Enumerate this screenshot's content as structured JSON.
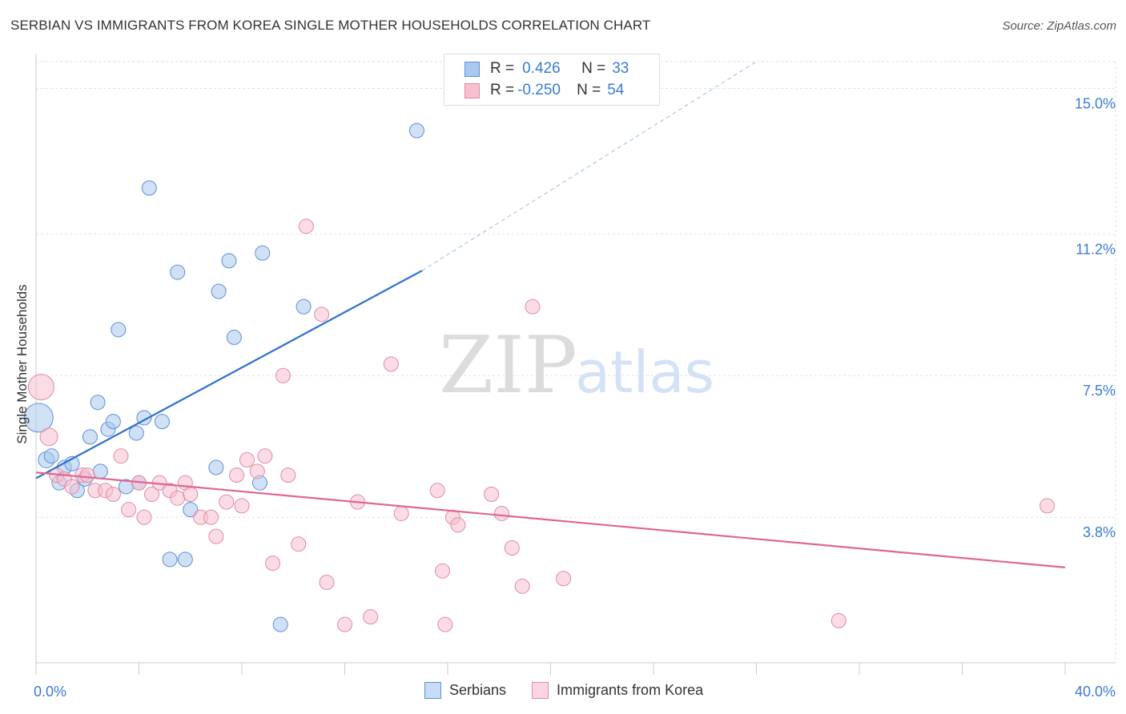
{
  "title": "SERBIAN VS IMMIGRANTS FROM KOREA SINGLE MOTHER HOUSEHOLDS CORRELATION CHART",
  "source": "Source: ZipAtlas.com",
  "watermark": {
    "zip": "ZIP",
    "atlas": "atlas"
  },
  "legend_top": [
    {
      "r_label": "R =",
      "r_value": "0.426",
      "n_label": "N =",
      "n_value": "33",
      "color": "#a9c8ef",
      "border": "#5b8fd6"
    },
    {
      "r_label": "R =",
      "r_value": "-0.250",
      "n_label": "N =",
      "n_value": "54",
      "color": "#f7c0d0",
      "border": "#e08aa6"
    }
  ],
  "legend_bottom": [
    "Serbians",
    "Immigrants from Korea"
  ],
  "chart_data": {
    "type": "scatter",
    "title": "SERBIAN VS IMMIGRANTS FROM KOREA SINGLE MOTHER HOUSEHOLDS CORRELATION CHART",
    "xlabel": "",
    "ylabel": "Single Mother Households",
    "xlim": [
      0,
      40
    ],
    "ylim": [
      0,
      15.7
    ],
    "x_tick_labels": [
      "0.0%",
      "40.0%"
    ],
    "x_tick_label_values": [
      0,
      40
    ],
    "x_ticks": [
      0,
      4,
      8,
      12,
      16,
      20,
      24,
      28,
      32,
      36,
      40
    ],
    "y_ticks": [
      3.8,
      7.5,
      11.2,
      15.0
    ],
    "y_tick_labels": [
      "3.8%",
      "7.5%",
      "11.2%",
      "15.0%"
    ],
    "grid": true,
    "series": [
      {
        "name": "Serbians",
        "color": "#a9c8ef",
        "stroke": "#5b8fd6",
        "points": [
          [
            0.1,
            6.4,
            18
          ],
          [
            0.4,
            5.3,
            10
          ],
          [
            0.6,
            5.4,
            9
          ],
          [
            0.9,
            4.7,
            9
          ],
          [
            1.1,
            5.1,
            9
          ],
          [
            1.4,
            5.2,
            9
          ],
          [
            1.6,
            4.5,
            9
          ],
          [
            1.9,
            4.8,
            9
          ],
          [
            2.1,
            5.9,
            9
          ],
          [
            2.4,
            6.8,
            9
          ],
          [
            2.5,
            5.0,
            9
          ],
          [
            2.8,
            6.1,
            9
          ],
          [
            3.0,
            6.3,
            9
          ],
          [
            3.2,
            8.7,
            9
          ],
          [
            3.5,
            4.6,
            9
          ],
          [
            3.9,
            6.0,
            9
          ],
          [
            4.0,
            4.7,
            9
          ],
          [
            4.2,
            6.4,
            9
          ],
          [
            4.4,
            12.4,
            9
          ],
          [
            4.9,
            6.3,
            9
          ],
          [
            5.2,
            2.7,
            9
          ],
          [
            5.5,
            10.2,
            9
          ],
          [
            5.8,
            2.7,
            9
          ],
          [
            6.0,
            4.0,
            9
          ],
          [
            7.0,
            5.1,
            9
          ],
          [
            7.1,
            9.7,
            9
          ],
          [
            7.5,
            10.5,
            9
          ],
          [
            7.7,
            8.5,
            9
          ],
          [
            8.7,
            4.7,
            9
          ],
          [
            8.8,
            10.7,
            9
          ],
          [
            9.5,
            1.0,
            9
          ],
          [
            10.4,
            9.3,
            9
          ],
          [
            14.8,
            13.9,
            9
          ]
        ],
        "trendline": {
          "x": [
            0,
            15.0
          ],
          "y": [
            4.82,
            10.24
          ]
        },
        "trendline_dashed_extension": {
          "x": [
            15.0,
            28.0
          ],
          "y": [
            10.24,
            15.7
          ]
        }
      },
      {
        "name": "Immigrants from Korea",
        "color": "#f7c0d0",
        "stroke": "#e08aa6",
        "points": [
          [
            0.2,
            7.2,
            16
          ],
          [
            0.5,
            5.9,
            11
          ],
          [
            0.8,
            4.9,
            9
          ],
          [
            1.1,
            4.8,
            9
          ],
          [
            1.4,
            4.6,
            9
          ],
          [
            1.8,
            4.9,
            9
          ],
          [
            2.0,
            4.9,
            9
          ],
          [
            2.3,
            4.5,
            9
          ],
          [
            2.7,
            4.5,
            9
          ],
          [
            3.0,
            4.4,
            9
          ],
          [
            3.3,
            5.4,
            9
          ],
          [
            3.6,
            4.0,
            9
          ],
          [
            4.0,
            4.7,
            9
          ],
          [
            4.2,
            3.8,
            9
          ],
          [
            4.5,
            4.4,
            9
          ],
          [
            4.8,
            4.7,
            9
          ],
          [
            5.2,
            4.5,
            9
          ],
          [
            5.5,
            4.3,
            9
          ],
          [
            5.8,
            4.7,
            9
          ],
          [
            6.0,
            4.4,
            9
          ],
          [
            6.4,
            3.8,
            9
          ],
          [
            6.8,
            3.8,
            9
          ],
          [
            7.0,
            3.3,
            9
          ],
          [
            7.4,
            4.2,
            9
          ],
          [
            7.8,
            4.9,
            9
          ],
          [
            8.0,
            4.1,
            9
          ],
          [
            8.2,
            5.3,
            9
          ],
          [
            8.6,
            5.0,
            9
          ],
          [
            8.9,
            5.4,
            9
          ],
          [
            9.2,
            2.6,
            9
          ],
          [
            9.6,
            7.5,
            9
          ],
          [
            9.8,
            4.9,
            9
          ],
          [
            10.2,
            3.1,
            9
          ],
          [
            10.5,
            11.4,
            9
          ],
          [
            11.1,
            9.1,
            9
          ],
          [
            11.3,
            2.1,
            9
          ],
          [
            12.0,
            1.0,
            9
          ],
          [
            12.5,
            4.2,
            9
          ],
          [
            13.0,
            1.2,
            9
          ],
          [
            13.8,
            7.8,
            9
          ],
          [
            14.2,
            3.9,
            9
          ],
          [
            15.6,
            4.5,
            9
          ],
          [
            15.8,
            2.4,
            9
          ],
          [
            15.9,
            1.0,
            9
          ],
          [
            16.2,
            3.8,
            9
          ],
          [
            16.4,
            3.6,
            9
          ],
          [
            17.7,
            4.4,
            9
          ],
          [
            18.1,
            3.9,
            9
          ],
          [
            18.5,
            3.0,
            9
          ],
          [
            18.9,
            2.0,
            9
          ],
          [
            19.3,
            9.3,
            9
          ],
          [
            20.5,
            2.2,
            9
          ],
          [
            31.2,
            1.1,
            9
          ],
          [
            39.3,
            4.1,
            9
          ]
        ],
        "trendline": {
          "x": [
            0,
            40
          ],
          "y": [
            4.97,
            2.49
          ]
        }
      }
    ]
  }
}
